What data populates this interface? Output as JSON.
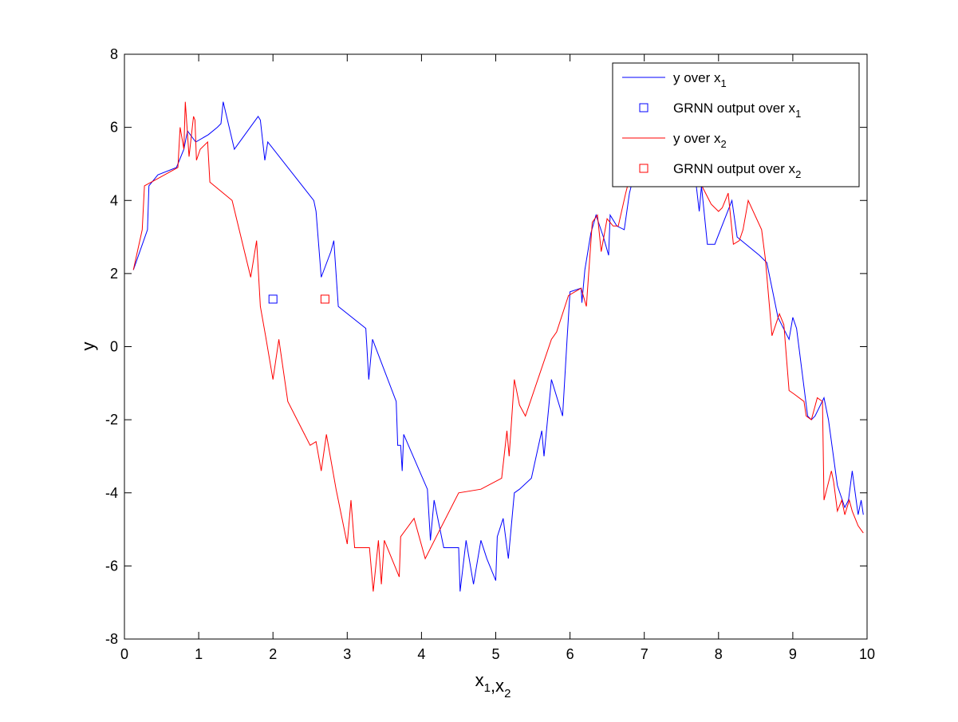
{
  "figure": {
    "background": "#ffffff"
  },
  "chart_data": {
    "type": "line",
    "xlabel": "x1,x2",
    "ylabel": "y",
    "xlim": [
      0,
      10
    ],
    "ylim": [
      -8,
      8
    ],
    "xticks": [
      0,
      1,
      2,
      3,
      4,
      5,
      6,
      7,
      8,
      9,
      10
    ],
    "yticks": [
      -8,
      -6,
      -4,
      -2,
      0,
      2,
      4,
      6,
      8
    ],
    "grid": false,
    "legend": {
      "placement": "top-right",
      "entries": [
        {
          "text": "y over x",
          "sub": "1",
          "marker": "line",
          "color": "#0000ff"
        },
        {
          "text": "GRNN output over x",
          "sub": "1",
          "marker": "square",
          "color": "#0000ff"
        },
        {
          "text": "y over x",
          "sub": "2",
          "marker": "line",
          "color": "#ff0000"
        },
        {
          "text": "GRNN output over x",
          "sub": "2",
          "marker": "square",
          "color": "#ff0000"
        }
      ]
    },
    "series": [
      {
        "name": "y over x1",
        "kind": "line",
        "color": "#0000ff",
        "x": [
          0.12,
          0.31,
          0.33,
          0.45,
          0.7,
          0.8,
          0.82,
          0.85,
          0.96,
          1.13,
          1.25,
          1.3,
          1.33,
          1.48,
          1.8,
          1.83,
          1.89,
          1.93,
          2.55,
          2.58,
          2.65,
          2.78,
          2.82,
          2.88,
          3.25,
          3.29,
          3.34,
          3.66,
          3.68,
          3.72,
          3.74,
          3.76,
          4.08,
          4.12,
          4.17,
          4.3,
          4.5,
          4.52,
          4.6,
          4.7,
          4.8,
          4.88,
          5.0,
          5.02,
          5.1,
          5.17,
          5.25,
          5.32,
          5.48,
          5.62,
          5.65,
          5.75,
          5.9,
          5.96,
          6.0,
          6.15,
          6.16,
          6.2,
          6.28,
          6.35,
          6.45,
          6.52,
          6.54,
          6.63,
          6.73,
          6.8,
          6.85,
          6.9,
          7.0,
          7.7,
          7.74,
          7.77,
          7.85,
          7.95,
          8.18,
          8.25,
          8.55,
          8.65,
          8.8,
          8.95,
          9.0,
          9.05,
          9.2,
          9.25,
          9.3,
          9.42,
          9.48,
          9.6,
          9.7,
          9.75,
          9.8,
          9.88,
          9.92,
          9.95
        ],
        "y": [
          2.1,
          3.2,
          4.4,
          4.7,
          4.9,
          5.4,
          5.6,
          5.9,
          5.6,
          5.8,
          6.0,
          6.1,
          6.7,
          5.4,
          6.3,
          6.2,
          5.1,
          5.6,
          4.0,
          3.7,
          1.9,
          2.6,
          2.9,
          1.1,
          0.5,
          -0.9,
          0.2,
          -1.5,
          -2.7,
          -2.7,
          -3.4,
          -2.4,
          -3.9,
          -5.3,
          -4.2,
          -5.5,
          -5.5,
          -6.7,
          -5.3,
          -6.5,
          -5.3,
          -5.8,
          -6.4,
          -5.2,
          -4.7,
          -5.8,
          -4.0,
          -3.9,
          -3.6,
          -2.3,
          -3.0,
          -0.9,
          -1.9,
          0.2,
          1.5,
          1.6,
          1.2,
          2.1,
          3.1,
          3.6,
          3.0,
          2.5,
          3.6,
          3.3,
          3.2,
          4.2,
          4.6,
          5.0,
          5.5,
          4.4,
          3.7,
          4.4,
          2.8,
          2.8,
          4.0,
          3.0,
          2.5,
          2.3,
          0.8,
          0.2,
          0.8,
          0.5,
          -1.9,
          -2.0,
          -1.9,
          -1.4,
          -2.0,
          -3.8,
          -4.4,
          -4.2,
          -3.4,
          -4.6,
          -4.2,
          -4.6
        ]
      },
      {
        "name": "y over x2",
        "kind": "line",
        "color": "#ff0000",
        "x": [
          0.12,
          0.24,
          0.27,
          0.45,
          0.72,
          0.75,
          0.8,
          0.82,
          0.87,
          0.93,
          0.95,
          0.97,
          1.02,
          1.12,
          1.15,
          1.45,
          1.7,
          1.78,
          1.83,
          1.9,
          2.0,
          2.08,
          2.2,
          2.5,
          2.58,
          2.65,
          2.72,
          2.85,
          3.0,
          3.05,
          3.1,
          3.3,
          3.35,
          3.42,
          3.46,
          3.5,
          3.7,
          3.72,
          3.9,
          4.05,
          4.2,
          4.5,
          4.8,
          5.08,
          5.15,
          5.18,
          5.25,
          5.32,
          5.4,
          5.75,
          5.82,
          5.98,
          6.15,
          6.22,
          6.3,
          6.37,
          6.42,
          6.5,
          6.58,
          6.65,
          6.75,
          6.8,
          6.85,
          7.15,
          7.3,
          7.4,
          7.5,
          7.6,
          7.75,
          7.9,
          8.0,
          8.05,
          8.13,
          8.2,
          8.28,
          8.33,
          8.4,
          8.58,
          8.63,
          8.72,
          8.82,
          8.88,
          8.95,
          9.02,
          9.15,
          9.18,
          9.25,
          9.33,
          9.4,
          9.42,
          9.52,
          9.55,
          9.6,
          9.66,
          9.7,
          9.76,
          9.8,
          9.88,
          9.95
        ],
        "y": [
          2.1,
          3.2,
          4.4,
          4.6,
          4.9,
          6.0,
          5.4,
          6.7,
          5.2,
          6.3,
          6.2,
          5.1,
          5.4,
          5.6,
          4.5,
          4.0,
          1.9,
          2.9,
          1.1,
          0.3,
          -0.9,
          0.2,
          -1.5,
          -2.7,
          -2.6,
          -3.4,
          -2.4,
          -3.9,
          -5.4,
          -4.2,
          -5.5,
          -5.5,
          -6.7,
          -5.3,
          -6.5,
          -5.3,
          -6.3,
          -5.2,
          -4.7,
          -5.8,
          -5.2,
          -4.0,
          -3.9,
          -3.6,
          -2.3,
          -3.0,
          -0.9,
          -1.6,
          -1.9,
          0.2,
          0.4,
          1.4,
          1.6,
          1.1,
          3.4,
          3.6,
          2.6,
          3.5,
          3.3,
          3.3,
          4.2,
          4.6,
          5.0,
          5.4,
          4.5,
          5.2,
          4.7,
          4.9,
          4.5,
          3.9,
          3.7,
          3.8,
          4.2,
          2.8,
          2.9,
          3.2,
          4.0,
          3.2,
          2.4,
          0.3,
          0.9,
          0.6,
          -1.2,
          -1.3,
          -1.5,
          -1.9,
          -2.0,
          -1.4,
          -1.5,
          -4.2,
          -3.4,
          -3.7,
          -4.5,
          -4.2,
          -4.6,
          -4.2,
          -4.5,
          -4.9,
          -5.1
        ]
      },
      {
        "name": "GRNN output over x1",
        "kind": "marker",
        "color": "#0000ff",
        "x": [
          2.0
        ],
        "y": [
          1.3
        ]
      },
      {
        "name": "GRNN output over x2",
        "kind": "marker",
        "color": "#ff0000",
        "x": [
          2.7
        ],
        "y": [
          1.3
        ]
      }
    ]
  }
}
